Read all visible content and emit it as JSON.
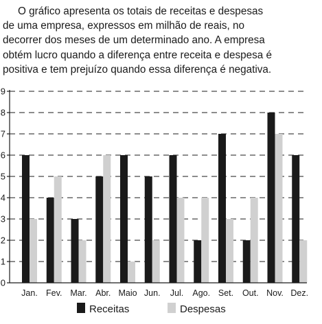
{
  "intro": {
    "lines": [
      "O gráfico apresenta os totais de receitas e despesas",
      "de uma empresa, expressos em milhão de reais, no",
      "decorrer dos meses de um determinado ano. A empresa",
      "obtém lucro quando a diferença entre receita e despesa é",
      "positiva e tem prejuízo quando essa diferença é negativa."
    ]
  },
  "chart_data": {
    "type": "bar",
    "categories": [
      "Jan.",
      "Fev.",
      "Mar.",
      "Abr.",
      "Maio",
      "Jun.",
      "Jul.",
      "Ago.",
      "Set.",
      "Out.",
      "Nov.",
      "Dez."
    ],
    "series": [
      {
        "name": "Receitas",
        "values": [
          6,
          4,
          3,
          5,
          6,
          5,
          6,
          2,
          7,
          2,
          8,
          6
        ],
        "color": "#1a1a1a"
      },
      {
        "name": "Despesas",
        "values": [
          3,
          5,
          2,
          6,
          1,
          2,
          4,
          4,
          3,
          4,
          7,
          2
        ],
        "color": "#d0d0d0"
      }
    ],
    "ylim": [
      0,
      9
    ],
    "yticks": [
      0,
      1,
      2,
      3,
      4,
      5,
      6,
      7,
      8,
      9
    ],
    "grid": "dashed horizontal",
    "legend": "bottom"
  }
}
